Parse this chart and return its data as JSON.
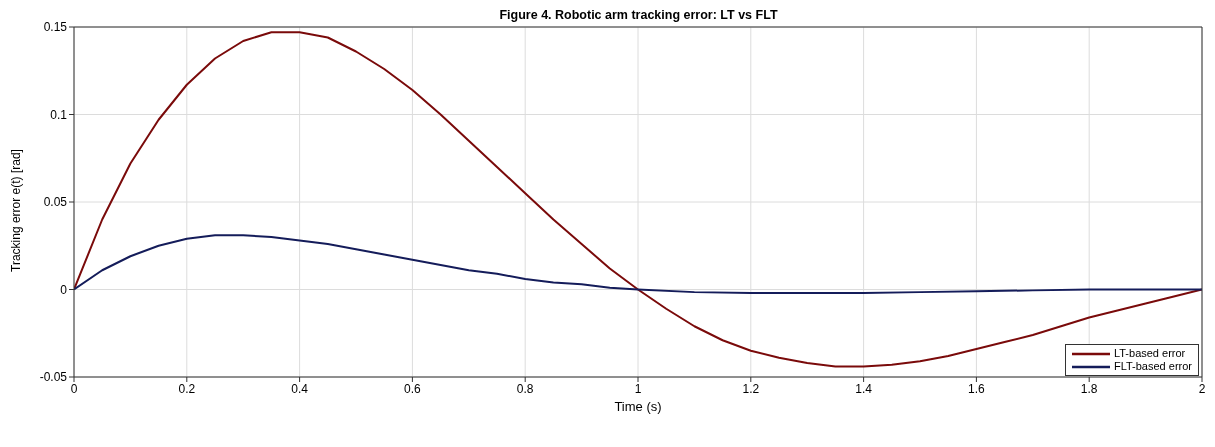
{
  "chart_data": {
    "type": "line",
    "title": "Figure 4. Robotic arm tracking error: LT vs FLT",
    "xlabel": "Time (s)",
    "ylabel": "Tracking error e(t) [rad]",
    "xlim": [
      0,
      2
    ],
    "xticks": [
      0,
      0.2,
      0.4,
      0.6,
      0.8,
      1,
      1.2,
      1.4,
      1.6,
      1.8,
      2
    ],
    "ylim": [
      -0.05,
      0.15
    ],
    "yticks": [
      -0.05,
      0,
      0.05,
      0.1,
      0.15
    ],
    "grid": true,
    "legend": "bottom right",
    "line_style": "solid",
    "marker": "none",
    "series": [
      {
        "name": "LT-based error",
        "color": "#7a0a0a",
        "x": [
          0,
          0.05,
          0.1,
          0.15,
          0.2,
          0.25,
          0.3,
          0.35,
          0.4,
          0.45,
          0.5,
          0.55,
          0.6,
          0.65,
          0.7,
          0.75,
          0.8,
          0.85,
          0.9,
          0.95,
          1,
          1.05,
          1.1,
          1.15,
          1.2,
          1.25,
          1.3,
          1.35,
          1.4,
          1.45,
          1.5,
          1.55,
          1.6,
          1.65,
          1.7,
          1.75,
          1.8,
          1.85,
          1.9,
          1.95,
          2
        ],
        "values": [
          0,
          0.04,
          0.072,
          0.097,
          0.117,
          0.132,
          0.142,
          0.147,
          0.147,
          0.144,
          0.136,
          0.126,
          0.114,
          0.1,
          0.085,
          0.07,
          0.055,
          0.04,
          0.026,
          0.012,
          0,
          -0.011,
          -0.021,
          -0.029,
          -0.035,
          -0.039,
          -0.042,
          -0.044,
          -0.044,
          -0.043,
          -0.041,
          -0.038,
          -0.034,
          -0.03,
          -0.026,
          -0.021,
          -0.016,
          -0.012,
          -0.008,
          -0.004,
          0
        ]
      },
      {
        "name": "FLT-based error",
        "color": "#141c5a",
        "x": [
          0,
          0.05,
          0.1,
          0.15,
          0.2,
          0.25,
          0.3,
          0.35,
          0.4,
          0.45,
          0.5,
          0.55,
          0.6,
          0.65,
          0.7,
          0.75,
          0.8,
          0.85,
          0.9,
          0.95,
          1,
          1.1,
          1.2,
          1.3,
          1.4,
          1.5,
          1.6,
          1.7,
          1.8,
          1.9,
          2
        ],
        "values": [
          0,
          0.011,
          0.019,
          0.025,
          0.029,
          0.031,
          0.031,
          0.03,
          0.028,
          0.026,
          0.023,
          0.02,
          0.017,
          0.014,
          0.011,
          0.009,
          0.006,
          0.004,
          0.003,
          0.001,
          0,
          -0.0015,
          -0.002,
          -0.002,
          -0.002,
          -0.0015,
          -0.001,
          -0.0005,
          0,
          0,
          0
        ]
      }
    ]
  }
}
